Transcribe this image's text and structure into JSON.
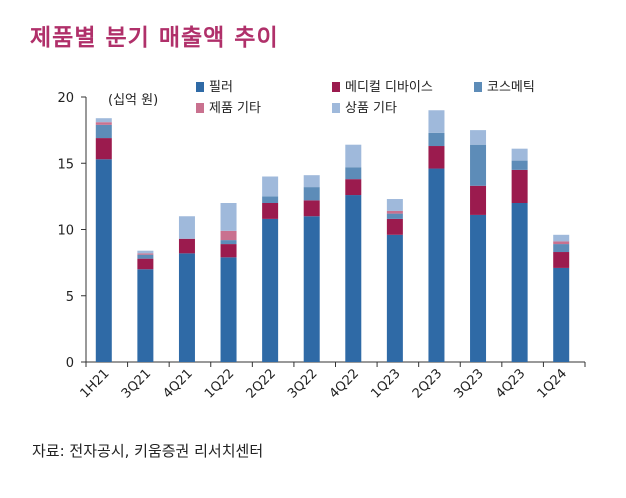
{
  "title": "제품별 분기 매출액 추이",
  "source": "자료: 전자공시, 키움증권 리서치센터",
  "chart_data": {
    "type": "bar",
    "stacked": true,
    "unit_label": "(십억 원)",
    "categories": [
      "1H21",
      "3Q21",
      "4Q21",
      "1Q22",
      "2Q22",
      "3Q22",
      "4Q22",
      "1Q23",
      "2Q23",
      "3Q23",
      "4Q23",
      "1Q24"
    ],
    "series": [
      {
        "name": "필러",
        "color": "#2f6aa6",
        "values": [
          15.3,
          7.0,
          8.2,
          7.9,
          10.8,
          11.0,
          12.6,
          9.6,
          14.6,
          11.1,
          12.0,
          7.1
        ]
      },
      {
        "name": "메디컬 디바이스",
        "color": "#9b1b4e",
        "values": [
          1.6,
          0.8,
          1.1,
          1.0,
          1.2,
          1.2,
          1.2,
          1.2,
          1.7,
          2.2,
          2.5,
          1.2
        ]
      },
      {
        "name": "코스메틱",
        "color": "#5d8cb8",
        "values": [
          1.0,
          0.3,
          0.0,
          0.3,
          0.5,
          1.0,
          0.9,
          0.4,
          1.0,
          3.1,
          0.7,
          0.6
        ]
      },
      {
        "name": "제품 기타",
        "color": "#c9718f",
        "values": [
          0.2,
          0.1,
          0.0,
          0.7,
          0.0,
          0.0,
          0.0,
          0.2,
          0.0,
          0.0,
          0.0,
          0.2
        ]
      },
      {
        "name": "상품 기타",
        "color": "#9fb9db",
        "values": [
          0.3,
          0.2,
          1.7,
          2.1,
          1.5,
          0.9,
          1.7,
          0.9,
          1.7,
          1.1,
          0.9,
          0.5
        ]
      }
    ],
    "ylim": [
      0,
      20
    ],
    "yticks": [
      0,
      5,
      10,
      15,
      20
    ],
    "legend_order": [
      0,
      1,
      2,
      3,
      4
    ],
    "legend_position": "top"
  }
}
